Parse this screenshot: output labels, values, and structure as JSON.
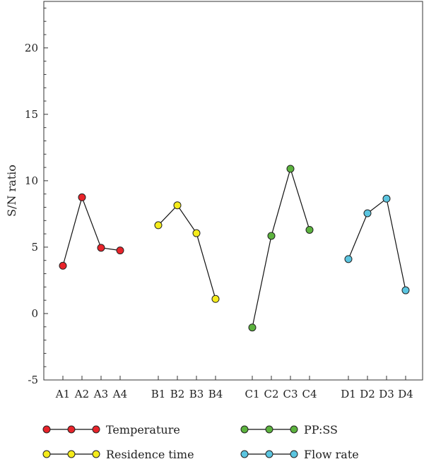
{
  "chart_data": {
    "type": "line",
    "ylabel": "S/N ratio",
    "ylim": [
      -5,
      23.5
    ],
    "yticks": [
      -5,
      0,
      5,
      10,
      15,
      20
    ],
    "grid": false,
    "legend_position": "bottom",
    "series": [
      {
        "name": "Temperature",
        "color": "#e8232a",
        "categories": [
          "A1",
          "A2",
          "A3",
          "A4"
        ],
        "values": [
          3.6,
          8.75,
          4.95,
          4.75
        ]
      },
      {
        "name": "Residence time",
        "color": "#f5ec1b",
        "categories": [
          "B1",
          "B2",
          "B3",
          "B4"
        ],
        "values": [
          6.65,
          8.15,
          6.05,
          1.1
        ]
      },
      {
        "name": "PP:SS",
        "color": "#5cb33e",
        "categories": [
          "C1",
          "C2",
          "C3",
          "C4"
        ],
        "values": [
          -1.05,
          5.85,
          10.9,
          6.3
        ]
      },
      {
        "name": "Flow rate",
        "color": "#5bc5e0",
        "categories": [
          "D1",
          "D2",
          "D3",
          "D4"
        ],
        "values": [
          4.1,
          7.55,
          8.65,
          1.75
        ]
      }
    ]
  }
}
